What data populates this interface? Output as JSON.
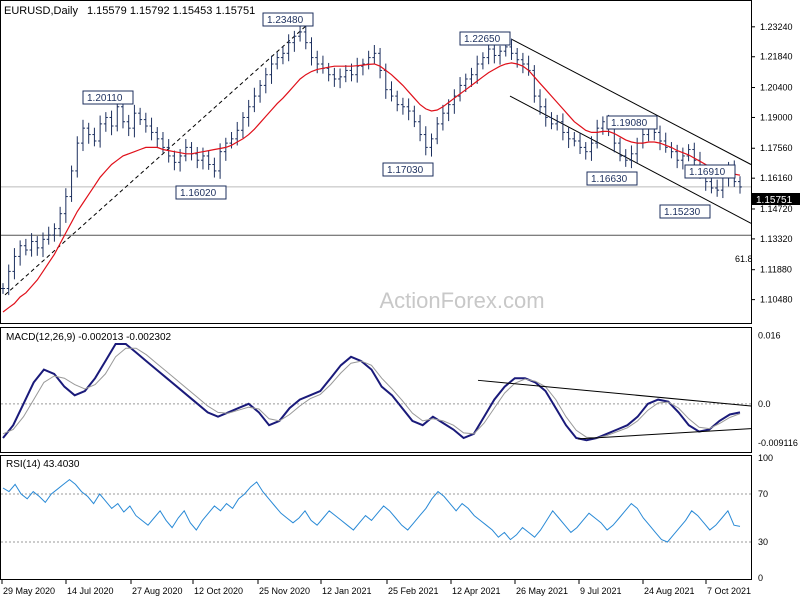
{
  "chart_data": {
    "type": "candlestick",
    "header": {
      "symbol": "EURUSD,Daily",
      "ohlc": "1.15579 1.15792 1.15453 1.15751"
    },
    "watermark": "ActionForex.com",
    "price_axis": {
      "min": 1.0962,
      "max": 1.2412,
      "ticks": [
        "1.23240",
        "1.21840",
        "1.20400",
        "1.19000",
        "1.17560",
        "1.16160",
        "1.14720",
        "1.13320",
        "1.11880",
        "1.10480"
      ],
      "current_price": "1.15751"
    },
    "x_axis_labels": [
      "29 May 2020",
      "14 Jul 2020",
      "27 Aug 2020",
      "12 Oct 2020",
      "25 Nov 2020",
      "12 Jan 2021",
      "25 Feb 2021",
      "12 Apr 2021",
      "26 May 2021",
      "9 Jul 2021",
      "24 Aug 2021",
      "7 Oct 2021"
    ],
    "level_labels": [
      "1.23480",
      "1.22650",
      "1.20110",
      "1.19080",
      "1.17030",
      "1.16910",
      "1.16630",
      "1.16020",
      "1.15230"
    ],
    "fib_label": "61.8",
    "fib_level": 1.1349,
    "close_series": [
      1.11,
      1.118,
      1.125,
      1.13,
      1.128,
      1.132,
      1.129,
      1.133,
      1.135,
      1.138,
      1.145,
      1.153,
      1.165,
      1.178,
      1.185,
      1.182,
      1.179,
      1.187,
      1.19,
      1.186,
      1.195,
      1.188,
      1.185,
      1.192,
      1.189,
      1.186,
      1.183,
      1.18,
      1.176,
      1.172,
      1.169,
      1.172,
      1.176,
      1.173,
      1.17,
      1.172,
      1.168,
      1.165,
      1.174,
      1.178,
      1.18,
      1.184,
      1.19,
      1.195,
      1.2,
      1.205,
      1.21,
      1.215,
      1.218,
      1.22,
      1.225,
      1.228,
      1.23,
      1.225,
      1.218,
      1.215,
      1.213,
      1.21,
      1.208,
      1.209,
      1.212,
      1.21,
      1.214,
      1.215,
      1.218,
      1.22,
      1.212,
      1.203,
      1.2,
      1.196,
      1.195,
      1.193,
      1.188,
      1.182,
      1.176,
      1.18,
      1.187,
      1.192,
      1.196,
      1.2,
      1.205,
      1.208,
      1.21,
      1.215,
      1.218,
      1.222,
      1.219,
      1.221,
      1.223,
      1.22,
      1.217,
      1.215,
      1.212,
      1.2,
      1.195,
      1.19,
      1.187,
      1.188,
      1.183,
      1.18,
      1.179,
      1.176,
      1.174,
      1.178,
      1.185,
      1.188,
      1.185,
      1.178,
      1.172,
      1.17,
      1.173,
      1.178,
      1.182,
      1.186,
      1.183,
      1.179,
      1.176,
      1.174,
      1.17,
      1.172,
      1.175,
      1.17,
      1.165,
      1.16,
      1.157,
      1.156,
      1.162,
      1.166,
      1.16,
      1.1575
    ],
    "ma_series": [
      1.099,
      1.101,
      1.103,
      1.106,
      1.108,
      1.111,
      1.114,
      1.118,
      1.122,
      1.126,
      1.131,
      1.136,
      1.141,
      1.146,
      1.15,
      1.154,
      1.158,
      1.162,
      1.165,
      1.168,
      1.17,
      1.172,
      1.173,
      1.174,
      1.175,
      1.176,
      1.176,
      1.176,
      1.175,
      1.1745,
      1.174,
      1.1735,
      1.173,
      1.173,
      1.1735,
      1.174,
      1.1745,
      1.175,
      1.1755,
      1.176,
      1.177,
      1.1785,
      1.18,
      1.182,
      1.1845,
      1.1875,
      1.1905,
      1.1935,
      1.1965,
      1.199,
      1.202,
      1.205,
      1.208,
      1.21,
      1.2115,
      1.2125,
      1.213,
      1.2135,
      1.214,
      1.214,
      1.214,
      1.214,
      1.2142,
      1.2145,
      1.2148,
      1.215,
      1.214,
      1.212,
      1.21,
      1.2075,
      1.205,
      1.202,
      1.199,
      1.196,
      1.194,
      1.193,
      1.1935,
      1.195,
      1.197,
      1.199,
      1.201,
      1.203,
      1.205,
      1.207,
      1.209,
      1.211,
      1.2125,
      1.214,
      1.215,
      1.2155,
      1.215,
      1.214,
      1.212,
      1.209,
      1.206,
      1.203,
      1.2,
      1.197,
      1.194,
      1.191,
      1.188,
      1.186,
      1.184,
      1.183,
      1.183,
      1.1835,
      1.1835,
      1.1825,
      1.181,
      1.1795,
      1.1785,
      1.178,
      1.178,
      1.1785,
      1.1785,
      1.178,
      1.177,
      1.176,
      1.1745,
      1.1735,
      1.1725,
      1.171,
      1.1695,
      1.168,
      1.1665,
      1.165,
      1.1645,
      1.164,
      1.1635,
      1.163
    ],
    "macd": {
      "label": "MACD(12,26,9) -0.002013 -0.002302",
      "min": -0.0108,
      "max": 0.0168,
      "ticks": [
        "0.016",
        "0.0",
        "-0.009116"
      ],
      "macd_series": [
        -0.008,
        -0.005,
        0.0,
        0.005,
        0.008,
        0.007,
        0.004,
        0.002,
        0.003,
        0.006,
        0.01,
        0.014,
        0.014,
        0.012,
        0.01,
        0.008,
        0.006,
        0.004,
        0.002,
        0.0,
        -0.002,
        -0.003,
        -0.002,
        -0.001,
        0.0,
        -0.002,
        -0.005,
        -0.004,
        -0.001,
        0.001,
        0.002,
        0.003,
        0.006,
        0.009,
        0.011,
        0.01,
        0.008,
        0.004,
        0.002,
        -0.001,
        -0.004,
        -0.005,
        -0.003,
        -0.0045,
        -0.006,
        -0.008,
        -0.007,
        -0.003,
        0.001,
        0.004,
        0.006,
        0.006,
        0.005,
        0.003,
        -0.001,
        -0.005,
        -0.008,
        -0.0085,
        -0.008,
        -0.007,
        -0.006,
        -0.005,
        -0.003,
        0.0,
        0.001,
        0.0005,
        -0.002,
        -0.005,
        -0.0065,
        -0.006,
        -0.004,
        -0.0025,
        -0.002
      ],
      "signal_series": [
        -0.007,
        -0.006,
        -0.003,
        0.001,
        0.005,
        0.0065,
        0.006,
        0.0045,
        0.0035,
        0.0045,
        0.007,
        0.011,
        0.013,
        0.013,
        0.0115,
        0.0095,
        0.0075,
        0.0055,
        0.0035,
        0.0015,
        -0.0005,
        -0.002,
        -0.0022,
        -0.0015,
        -0.0008,
        -0.0012,
        -0.0035,
        -0.004,
        -0.0025,
        -0.0005,
        0.0012,
        0.0022,
        0.0045,
        0.0072,
        0.0095,
        0.01,
        0.009,
        0.006,
        0.0035,
        0.0008,
        -0.0022,
        -0.004,
        -0.0035,
        -0.004,
        -0.005,
        -0.0068,
        -0.007,
        -0.0045,
        -0.001,
        0.0025,
        0.0048,
        0.0058,
        0.0053,
        0.004,
        0.001,
        -0.003,
        -0.0062,
        -0.0078,
        -0.008,
        -0.0074,
        -0.0065,
        -0.0056,
        -0.004,
        -0.0015,
        0.0002,
        0.0004,
        -0.001,
        -0.0035,
        -0.0055,
        -0.0058,
        -0.0046,
        -0.0032,
        -0.0023
      ]
    },
    "rsi": {
      "label": "RSI(14) 43.4030",
      "min": 0,
      "max": 100,
      "ticks": [
        "100",
        "70",
        "30",
        "0"
      ],
      "levels": [
        70,
        30
      ],
      "series": [
        75,
        72,
        78,
        70,
        66,
        72,
        68,
        63,
        70,
        74,
        78,
        82,
        78,
        72,
        68,
        62,
        70,
        64,
        58,
        62,
        55,
        60,
        52,
        48,
        44,
        50,
        56,
        48,
        42,
        50,
        56,
        46,
        40,
        48,
        54,
        60,
        56,
        62,
        58,
        66,
        70,
        76,
        80,
        72,
        66,
        60,
        54,
        50,
        46,
        50,
        56,
        48,
        44,
        50,
        56,
        52,
        48,
        44,
        40,
        46,
        52,
        48,
        54,
        60,
        56,
        50,
        44,
        40,
        46,
        52,
        58,
        66,
        72,
        68,
        62,
        56,
        62,
        58,
        52,
        48,
        44,
        40,
        34,
        38,
        32,
        36,
        42,
        38,
        34,
        40,
        48,
        56,
        50,
        44,
        38,
        42,
        48,
        54,
        50,
        46,
        40,
        44,
        50,
        56,
        62,
        58,
        50,
        44,
        38,
        32,
        30,
        36,
        42,
        48,
        56,
        52,
        46,
        40,
        44,
        50,
        56,
        44,
        43
      ]
    }
  }
}
